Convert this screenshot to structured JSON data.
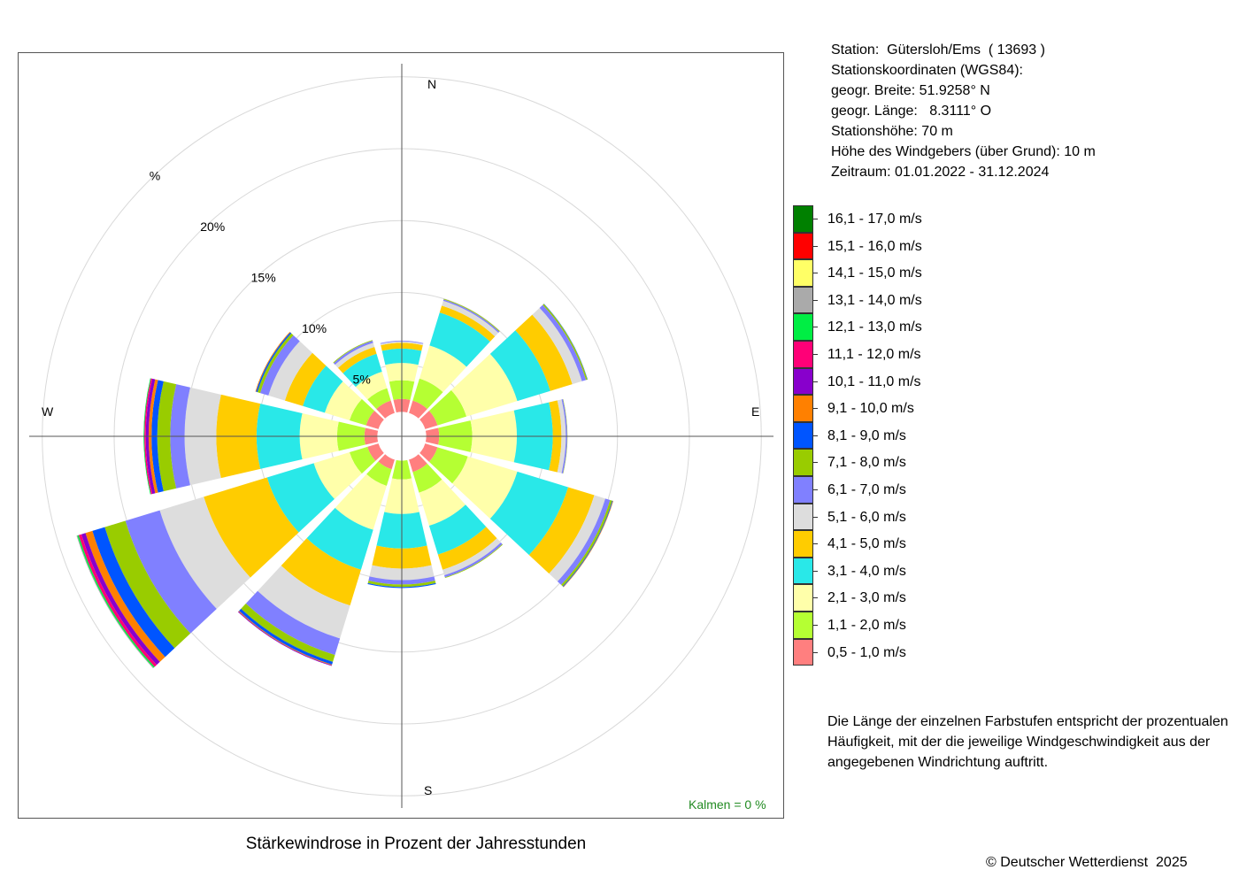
{
  "station": {
    "name_line": "Station:  Gütersloh/Ems  ( 13693 )",
    "coords_heading": "Stationskoordinaten (WGS84):",
    "latitude": "geogr. Breite: 51.9258° N",
    "longitude": "geogr. Länge:   8.3111° O",
    "elevation": "Stationshöhe: 70 m",
    "sensor_height": "Höhe des Windgebers (über Grund): 10 m",
    "period": "Zeitraum: 01.01.2022 - 31.12.2024"
  },
  "explanation": "Die Länge der einzelnen Farbstufen entspricht der prozentualen Häufigkeit, mit der die jeweilige Windgeschwindigkeit aus der angegebenen Windrichtung auftritt.",
  "copyright": "© Deutscher Wetterdienst  2025",
  "chart_data": {
    "type": "windrose",
    "title": "Stärkewindrose in Prozent der Jahresstunden",
    "directions_deg": [
      0,
      30,
      60,
      90,
      120,
      150,
      180,
      210,
      240,
      270,
      300,
      330
    ],
    "compass_labels": {
      "north": "N",
      "east": "E",
      "south": "S",
      "west": "W"
    },
    "ring_values": [
      5,
      10,
      15,
      20,
      25
    ],
    "ring_labels": [
      "5%",
      "10%",
      "15%",
      "20%",
      "%"
    ],
    "center_hole_percent": 1.7,
    "calm_label": "Kalmen  =  0 %",
    "legend_title_hidden": "",
    "speed_classes": [
      {
        "label": "16,1 - 17,0 m/s",
        "color": "#008000"
      },
      {
        "label": "15,1 - 16,0 m/s",
        "color": "#ff0000"
      },
      {
        "label": "14,1 - 15,0 m/s",
        "color": "#ffff66"
      },
      {
        "label": "13,1 - 14,0 m/s",
        "color": "#aaaaaa"
      },
      {
        "label": "12,1 - 13,0 m/s",
        "color": "#00ee44"
      },
      {
        "label": "11,1 - 12,0 m/s",
        "color": "#ff0077"
      },
      {
        "label": "10,1 - 11,0 m/s",
        "color": "#8800cc"
      },
      {
        "label": "9,1 - 10,0 m/s",
        "color": "#ff8000"
      },
      {
        "label": "8,1 - 9,0 m/s",
        "color": "#0055ff"
      },
      {
        "label": "7,1 - 8,0 m/s",
        "color": "#99cc00"
      },
      {
        "label": "6,1 - 7,0 m/s",
        "color": "#8080ff"
      },
      {
        "label": "5,1 - 6,0 m/s",
        "color": "#dddddd"
      },
      {
        "label": "4,1 - 5,0 m/s",
        "color": "#ffcc00"
      },
      {
        "label": "3,1 - 4,0 m/s",
        "color": "#29e8e8"
      },
      {
        "label": "2,1 - 3,0 m/s",
        "color": "#ffffaa"
      },
      {
        "label": "1,1 - 2,0 m/s",
        "color": "#b5ff33"
      },
      {
        "label": "0,5 - 1,0 m/s",
        "color": "#ff7f7f"
      }
    ],
    "series_note_hidden": "",
    "cumulative_by_direction": [
      {
        "dir": 0,
        "cum": [
          2.6,
          3.9,
          5.1,
          6.1,
          6.5,
          6.6,
          6.65
        ]
      },
      {
        "dir": 30,
        "cum": [
          2.6,
          4.2,
          6.6,
          9.0,
          9.5,
          9.85,
          9.95,
          10.0
        ]
      },
      {
        "dir": 60,
        "cum": [
          2.6,
          4.7,
          8.4,
          10.8,
          12.4,
          13.1,
          13.4,
          13.5,
          13.52
        ]
      },
      {
        "dir": 90,
        "cum": [
          2.6,
          4.9,
          8.0,
          10.5,
          11.1,
          11.4,
          11.5,
          11.52
        ]
      },
      {
        "dir": 120,
        "cum": [
          2.6,
          4.8,
          8.4,
          12.1,
          14.0,
          14.8,
          15.15,
          15.3,
          15.35,
          15.38
        ]
      },
      {
        "dir": 150,
        "cum": [
          2.6,
          4.1,
          6.5,
          8.6,
          9.7,
          10.1,
          10.25,
          10.3
        ]
      },
      {
        "dir": 180,
        "cum": [
          1.7,
          3.0,
          5.4,
          7.8,
          9.2,
          10.0,
          10.3,
          10.48,
          10.55
        ]
      },
      {
        "dir": 210,
        "cum": [
          2.4,
          3.6,
          6.8,
          9.7,
          12.3,
          14.7,
          15.9,
          16.4,
          16.6,
          16.65,
          16.7
        ]
      },
      {
        "dir": 240,
        "cum": [
          2.5,
          3.8,
          6.4,
          9.8,
          14.4,
          17.6,
          20.1,
          21.6,
          22.5,
          23.0,
          23.3,
          23.5,
          23.6,
          23.65
        ]
      },
      {
        "dir": 270,
        "cum": [
          2.6,
          4.5,
          7.1,
          10.1,
          12.9,
          15.1,
          16.1,
          17.0,
          17.4,
          17.6,
          17.8,
          17.9,
          17.95
        ]
      },
      {
        "dir": 300,
        "cum": [
          2.6,
          3.8,
          5.6,
          7.2,
          8.5,
          9.7,
          10.3,
          10.5,
          10.6,
          10.65
        ]
      },
      {
        "dir": 330,
        "cum": [
          2.6,
          3.5,
          4.7,
          6.0,
          6.5,
          6.8,
          6.95,
          7.0
        ]
      }
    ]
  },
  "colors": {
    "grid": "#d9d9d9",
    "axes": "#555555",
    "calm_text": "#228b22"
  }
}
